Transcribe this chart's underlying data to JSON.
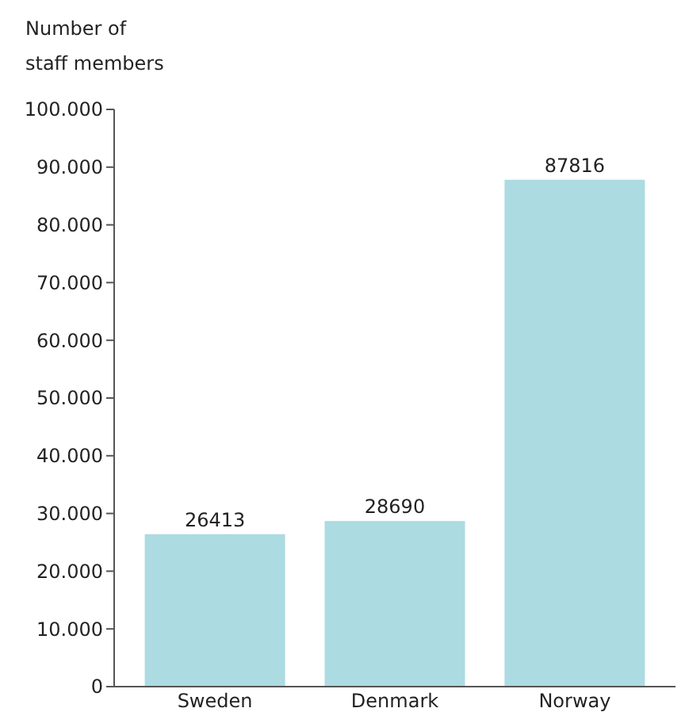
{
  "chart_data": {
    "type": "bar",
    "ylabel": "Number of staff members",
    "categories": [
      "Sweden",
      "Denmark",
      "Norway"
    ],
    "values": [
      26413,
      28690,
      87816
    ],
    "color": "#acdbe2",
    "data_labels": true,
    "ylim": [
      0,
      100000
    ],
    "yticks": [
      {
        "value": 0,
        "label": "0"
      },
      {
        "value": 10000,
        "label": "10.000"
      },
      {
        "value": 20000,
        "label": "20.000"
      },
      {
        "value": 30000,
        "label": "30.000"
      },
      {
        "value": 40000,
        "label": "40.000"
      },
      {
        "value": 50000,
        "label": "50.000"
      },
      {
        "value": 60000,
        "label": "60.000"
      },
      {
        "value": 70000,
        "label": "70.000"
      },
      {
        "value": 80000,
        "label": "80.000"
      },
      {
        "value": 90000,
        "label": "90.000"
      },
      {
        "value": 100000,
        "label": "100.000"
      }
    ],
    "grid": false
  }
}
